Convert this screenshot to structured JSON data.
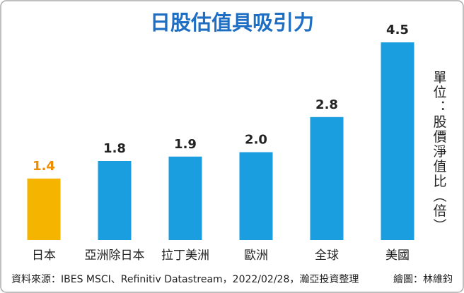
{
  "chart_data": {
    "type": "bar",
    "title": "日股估值具吸引力",
    "categories": [
      "日本",
      "亞洲除日本",
      "拉丁美洲",
      "歐洲",
      "全球",
      "美國"
    ],
    "values": [
      1.4,
      1.8,
      1.9,
      2.0,
      2.8,
      4.5
    ],
    "value_labels": [
      "1.4",
      "1.8",
      "1.9",
      "2.0",
      "2.8",
      "4.5"
    ],
    "colors": [
      "#f5b400",
      "#1a9ee0",
      "#1a9ee0",
      "#1a9ee0",
      "#1a9ee0",
      "#1a9ee0"
    ],
    "value_label_colors": [
      "#f08c00",
      "#222222",
      "#222222",
      "#222222",
      "#222222",
      "#222222"
    ],
    "unit_label": "單位：股價淨值比（倍）",
    "source": "資料來源：IBES MSCI、Refinitiv Datastream，2022/02/28，瀚亞投資整理",
    "credit": "繪圖：林維鈞"
  }
}
